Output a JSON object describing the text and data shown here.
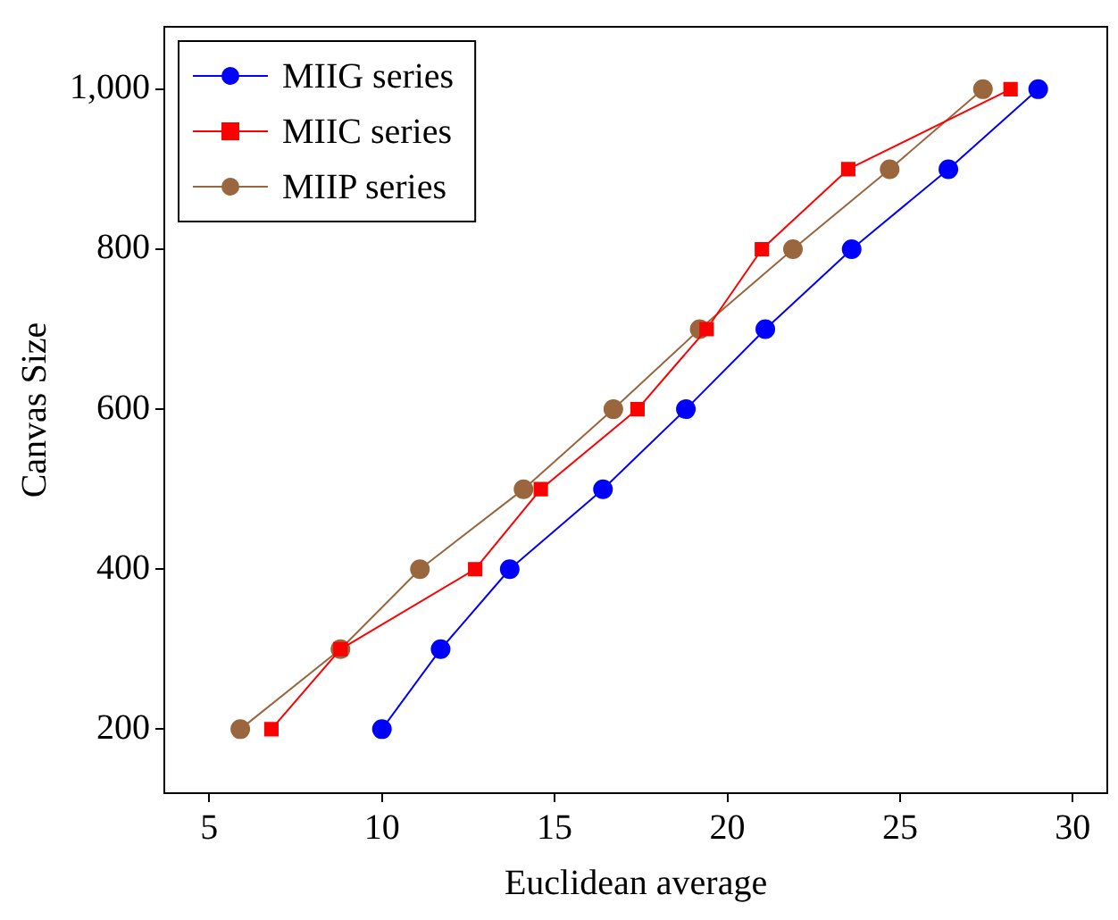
{
  "chart_data": {
    "type": "line",
    "xlabel": "Euclidean average",
    "ylabel": "Canvas Size",
    "xlim": [
      3.7,
      31
    ],
    "ylim": [
      120,
      1078
    ],
    "xticks": [
      5,
      10,
      15,
      20,
      25,
      30
    ],
    "yticks": [
      200,
      400,
      600,
      800,
      {
        "value": 1000,
        "label": "1,000"
      }
    ],
    "grid": false,
    "legend": "top left",
    "line_style": "solid",
    "series": [
      {
        "name": "MIIG series",
        "color": "#0000ff",
        "marker": "circle",
        "x": [
          10,
          11.7,
          13.7,
          16.4,
          18.8,
          21.1,
          23.6,
          26.4,
          29.0
        ],
        "values": [
          200,
          300,
          400,
          500,
          600,
          700,
          800,
          900,
          1000
        ]
      },
      {
        "name": "MIIC series",
        "color": "#ff0000",
        "marker": "square",
        "x": [
          6.8,
          8.8,
          12.7,
          14.6,
          17.4,
          19.4,
          21.0,
          23.5,
          28.2
        ],
        "values": [
          200,
          300,
          400,
          500,
          600,
          700,
          800,
          900,
          1000
        ]
      },
      {
        "name": "MIIP series",
        "color": "#99663d",
        "marker": "circle",
        "x": [
          5.9,
          8.8,
          11.1,
          14.1,
          16.7,
          19.2,
          21.9,
          24.7,
          27.4
        ],
        "values": [
          200,
          300,
          400,
          500,
          600,
          700,
          800,
          900,
          1000
        ]
      }
    ]
  }
}
